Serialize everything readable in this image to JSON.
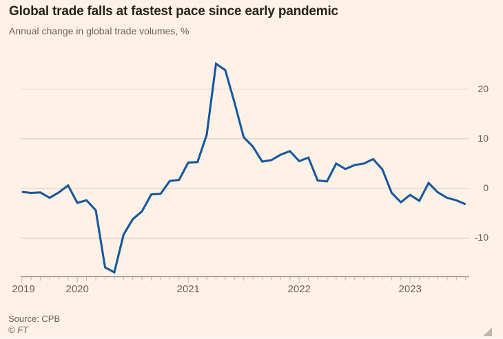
{
  "header": {
    "title": "Global trade falls at fastest pace since early pandemic",
    "subtitle": "Annual change in global trade volumes, %"
  },
  "footer": {
    "source": "Source: CPB",
    "credit": "© FT"
  },
  "colors": {
    "background": "#FFF1E5",
    "line": "#15589F",
    "gridline": "#D8CCC0",
    "axis": "#8A8178",
    "tick": "#C4B9AD",
    "text_muted": "#66605C",
    "title_text": "#26231E",
    "resize_handle": "#BDB6AF"
  },
  "chart_data": {
    "type": "line",
    "title": "Global trade falls at fastest pace since early pandemic",
    "subtitle": "Annual change in global trade volumes, %",
    "ylabel": "",
    "xlabel": "",
    "unit": "%",
    "source": "CPB",
    "legend": "none",
    "grid": "horizontal",
    "ytick_side": "right",
    "ylim": [
      -18,
      27
    ],
    "yticks": [
      20,
      10,
      0,
      -10
    ],
    "year_tick_labels": [
      "2019",
      "2020",
      "2021",
      "2022",
      "2023"
    ],
    "series_name": "Annual change in global trade volumes, %",
    "x": [
      "2019-07",
      "2019-08",
      "2019-09",
      "2019-10",
      "2019-11",
      "2019-12",
      "2020-01",
      "2020-02",
      "2020-03",
      "2020-04",
      "2020-05",
      "2020-06",
      "2020-07",
      "2020-08",
      "2020-09",
      "2020-10",
      "2020-11",
      "2020-12",
      "2021-01",
      "2021-02",
      "2021-03",
      "2021-04",
      "2021-05",
      "2021-06",
      "2021-07",
      "2021-08",
      "2021-09",
      "2021-10",
      "2021-11",
      "2021-12",
      "2022-01",
      "2022-02",
      "2022-03",
      "2022-04",
      "2022-05",
      "2022-06",
      "2022-07",
      "2022-08",
      "2022-09",
      "2022-10",
      "2022-11",
      "2022-12",
      "2023-01",
      "2023-02",
      "2023-03",
      "2023-04",
      "2023-05",
      "2023-06",
      "2023-07"
    ],
    "values": [
      -0.7,
      -0.9,
      -0.8,
      -1.9,
      -0.8,
      0.6,
      -2.9,
      -2.4,
      -4.4,
      -15.9,
      -16.9,
      -9.3,
      -6.2,
      -4.6,
      -1.2,
      -1.1,
      1.5,
      1.7,
      5.2,
      5.3,
      10.8,
      25.1,
      23.8,
      17.3,
      10.3,
      8.4,
      5.4,
      5.7,
      6.8,
      7.5,
      5.5,
      6.2,
      1.6,
      1.4,
      5.0,
      3.9,
      4.7,
      5.0,
      5.9,
      3.8,
      -0.9,
      -2.8,
      -1.3,
      -2.5,
      1.1,
      -0.8,
      -1.9,
      -2.4,
      -3.2
    ]
  }
}
